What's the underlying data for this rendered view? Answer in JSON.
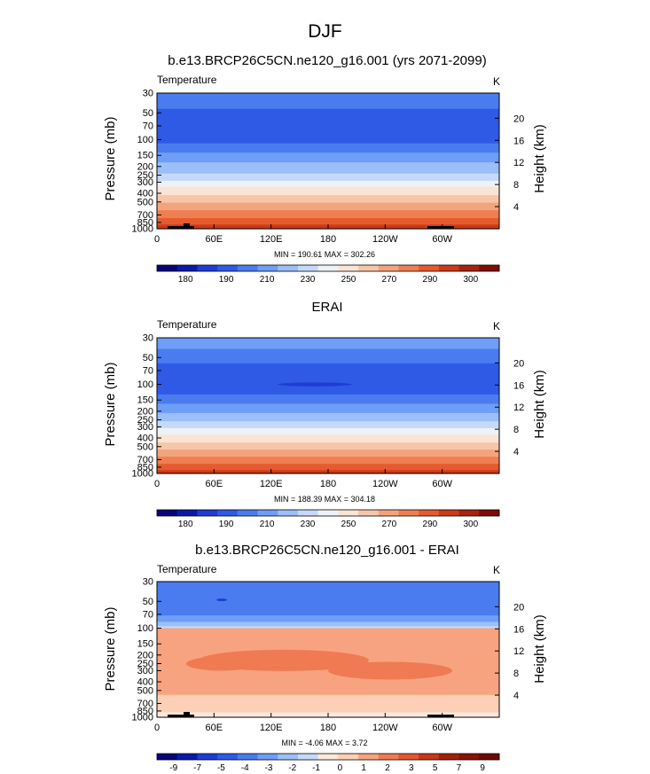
{
  "figure": {
    "title": "DJF"
  },
  "colorbars": [
    {
      "colors": [
        "#06067a",
        "#0a1aa8",
        "#1f3dd4",
        "#2f5ae6",
        "#4a7cf0",
        "#6e9ef5",
        "#9bbff8",
        "#c5dafb",
        "#eef2f6",
        "#fbe4d3",
        "#f7c6a8",
        "#f4a47c",
        "#ef7f52",
        "#e65a2e",
        "#cc3a18",
        "#a8230e",
        "#7d0d05"
      ],
      "labels": [
        "180",
        "190",
        "210",
        "230",
        "250",
        "270",
        "290",
        "300"
      ]
    },
    {
      "colors": [
        "#06067a",
        "#0a1aa8",
        "#1f3dd4",
        "#2f5ae6",
        "#4a7cf0",
        "#6e9ef5",
        "#9bbff8",
        "#c5dafb",
        "#eef2f6",
        "#fbe4d3",
        "#f7c6a8",
        "#f4a47c",
        "#ef7f52",
        "#e65a2e",
        "#cc3a18",
        "#a8230e",
        "#7d0d05"
      ],
      "labels": [
        "180",
        "190",
        "210",
        "230",
        "250",
        "270",
        "290",
        "300"
      ]
    },
    {
      "colors": [
        "#06067a",
        "#0a1aa8",
        "#1f3dd4",
        "#2f5ae6",
        "#4a7cf0",
        "#6e9ef5",
        "#9bbff8",
        "#c5dafb",
        "#fde9dc",
        "#fbd0b6",
        "#f8a37f",
        "#f07a52",
        "#e4562f",
        "#c93717",
        "#a5200c",
        "#8a1206",
        "#6f0803"
      ],
      "labels": [
        "-9",
        "-7",
        "-5",
        "-4",
        "-3",
        "-2",
        "-1",
        "0",
        "1",
        "2",
        "3",
        "5",
        "7",
        "9"
      ]
    }
  ],
  "chart_data": [
    {
      "type": "heatmap",
      "title": "b.e13.BRCP26C5CN.ne120_g16.001 (yrs 2071-2099)",
      "left_label": "Temperature",
      "right_label": "K",
      "ylabel": "Pressure (mb)",
      "ylabel_right": "Height (km)",
      "x_ticks": [
        "0",
        "60E",
        "120E",
        "180",
        "120W",
        "60W"
      ],
      "y_ticks": [
        "30",
        "50",
        "70",
        "100",
        "150",
        "200",
        "250",
        "300",
        "400",
        "500",
        "700",
        "850",
        "1000"
      ],
      "y_ticks_right": [
        "20",
        "16",
        "12",
        "8",
        "4"
      ],
      "stats": "MIN = 190.61  MAX = 302.26",
      "bands": [
        {
          "p": 30,
          "color": "#4a7cf0"
        },
        {
          "p": 45,
          "color": "#2f5ae6"
        },
        {
          "p": 110,
          "color": "#4a7cf0"
        },
        {
          "p": 140,
          "color": "#6e9ef5"
        },
        {
          "p": 180,
          "color": "#9bbff8"
        },
        {
          "p": 240,
          "color": "#c5dafb"
        },
        {
          "p": 290,
          "color": "#eef2f6"
        },
        {
          "p": 340,
          "color": "#fbe4d3"
        },
        {
          "p": 420,
          "color": "#f7c6a8"
        },
        {
          "p": 510,
          "color": "#f4a47c"
        },
        {
          "p": 620,
          "color": "#ef7f52"
        },
        {
          "p": 760,
          "color": "#e65a2e"
        },
        {
          "p": 900,
          "color": "#cc3a18"
        }
      ]
    },
    {
      "type": "heatmap",
      "title": "ERAI",
      "left_label": "Temperature",
      "right_label": "K",
      "ylabel": "Pressure (mb)",
      "ylabel_right": "Height (km)",
      "x_ticks": [
        "0",
        "60E",
        "120E",
        "180",
        "120W",
        "60W"
      ],
      "y_ticks": [
        "30",
        "50",
        "70",
        "100",
        "150",
        "200",
        "250",
        "300",
        "400",
        "500",
        "700",
        "850",
        "1000"
      ],
      "y_ticks_right": [
        "20",
        "16",
        "12",
        "8",
        "4"
      ],
      "stats": "MIN = 188.39  MAX = 304.18",
      "bands": [
        {
          "p": 30,
          "color": "#6e9ef5"
        },
        {
          "p": 40,
          "color": "#4a7cf0"
        },
        {
          "p": 58,
          "color": "#2f5ae6"
        },
        {
          "p": 130,
          "color": "#4a7cf0"
        },
        {
          "p": 165,
          "color": "#6e9ef5"
        },
        {
          "p": 210,
          "color": "#9bbff8"
        },
        {
          "p": 260,
          "color": "#c5dafb"
        },
        {
          "p": 310,
          "color": "#eef2f6"
        },
        {
          "p": 370,
          "color": "#fbe4d3"
        },
        {
          "p": 450,
          "color": "#f7c6a8"
        },
        {
          "p": 540,
          "color": "#f4a47c"
        },
        {
          "p": 650,
          "color": "#ef7f52"
        },
        {
          "p": 780,
          "color": "#e65a2e"
        },
        {
          "p": 920,
          "color": "#cc3a18"
        }
      ]
    },
    {
      "type": "heatmap",
      "title": "b.e13.BRCP26C5CN.ne120_g16.001 - ERAI",
      "left_label": "Temperature",
      "right_label": "K",
      "ylabel": "Pressure (mb)",
      "ylabel_right": "Height (km)",
      "x_ticks": [
        "0",
        "60E",
        "120E",
        "180",
        "120W",
        "60W"
      ],
      "y_ticks": [
        "30",
        "50",
        "70",
        "100",
        "150",
        "200",
        "250",
        "300",
        "400",
        "500",
        "700",
        "850",
        "1000"
      ],
      "y_ticks_right": [
        "20",
        "16",
        "12",
        "8",
        "4"
      ],
      "stats": "MIN = -4.06  MAX =   3.72",
      "bands": [
        {
          "p": 30,
          "color": "#4a7cf0"
        },
        {
          "p": 72,
          "color": "#6e9ef5"
        },
        {
          "p": 85,
          "color": "#9bbff8"
        },
        {
          "p": 95,
          "color": "#c5dafb"
        },
        {
          "p": 100,
          "color": "#f8a37f"
        },
        {
          "p": 560,
          "color": "#fbd0b6"
        },
        {
          "p": 880,
          "color": "#fde9dc"
        }
      ]
    }
  ]
}
